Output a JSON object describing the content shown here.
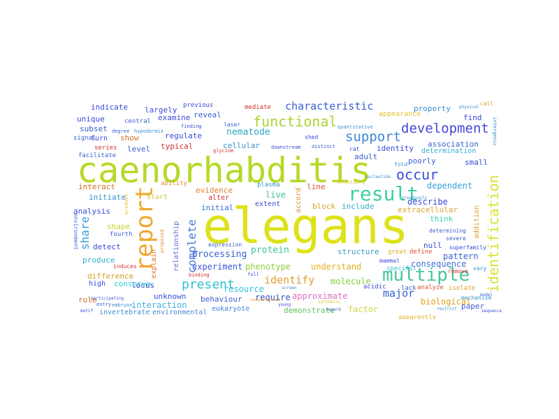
{
  "words": [
    {
      "text": "caenorhabditis",
      "color": "#b5d927"
    },
    {
      "text": "elegans",
      "color": "#dde21b"
    },
    {
      "text": "report",
      "color": "#f0a830"
    },
    {
      "text": "result",
      "color": "#3fcfa0"
    },
    {
      "text": "multiple",
      "color": "#46c79a"
    },
    {
      "text": "identification",
      "color": "#d7e232"
    },
    {
      "text": "development",
      "color": "#4a44d8"
    },
    {
      "text": "functional",
      "color": "#a8d534"
    },
    {
      "text": "characteristic",
      "color": "#3a5fcf"
    },
    {
      "text": "support",
      "color": "#3e86d8"
    },
    {
      "text": "occur",
      "color": "#3a4de0"
    },
    {
      "text": "present",
      "color": "#2fbfcf"
    },
    {
      "text": "complete",
      "color": "#4a7ad8"
    },
    {
      "text": "share",
      "color": "#3a9fd8"
    },
    {
      "text": "identify",
      "color": "#e0a030"
    },
    {
      "text": "major",
      "color": "#3060d0"
    },
    {
      "text": "nematode",
      "color": "#2fa6c0"
    },
    {
      "text": "protein",
      "color": "#3fc6a0"
    },
    {
      "text": "processing",
      "color": "#3a5fcf"
    },
    {
      "text": "experiment",
      "color": "#3a55d8"
    },
    {
      "text": "phenotype",
      "color": "#8fd03a"
    },
    {
      "text": "understand",
      "color": "#e0b020"
    },
    {
      "text": "molecule",
      "color": "#7fd03a"
    },
    {
      "text": "resource",
      "color": "#2fc2e0"
    },
    {
      "text": "require",
      "color": "#3050d0"
    },
    {
      "text": "approximate",
      "color": "#dc6fc0"
    },
    {
      "text": "demonstrate",
      "color": "#5fc060"
    },
    {
      "text": "factor",
      "color": "#d2d840"
    },
    {
      "text": "interaction",
      "color": "#3fb0e0"
    },
    {
      "text": "behaviour",
      "color": "#3a5fcf"
    },
    {
      "text": "eukaryote",
      "color": "#3a7fd8"
    },
    {
      "text": "biological",
      "color": "#e0a020"
    },
    {
      "text": "paper",
      "color": "#3a5fcf"
    },
    {
      "text": "invertebrate",
      "color": "#3a90d0"
    },
    {
      "text": "environmental",
      "color": "#4a8ad0"
    },
    {
      "text": "unknown",
      "color": "#3a55d8"
    },
    {
      "text": "locus",
      "color": "#2a40c0"
    },
    {
      "text": "high",
      "color": "#3050e0"
    },
    {
      "text": "conserve",
      "color": "#2fd0e0"
    },
    {
      "text": "role",
      "color": "#d07020"
    },
    {
      "text": "difference",
      "color": "#d0a020"
    },
    {
      "text": "produce",
      "color": "#2fb0d0"
    },
    {
      "text": "detect",
      "color": "#3a4ad8"
    },
    {
      "text": "shape",
      "color": "#c8d030"
    },
    {
      "text": "explain",
      "color": "#e07030"
    },
    {
      "text": "relationship",
      "color": "#5a70d0"
    },
    {
      "text": "analysis",
      "color": "#3a4ad8"
    },
    {
      "text": "initiate",
      "color": "#3a90d0"
    },
    {
      "text": "interact",
      "color": "#d07020"
    },
    {
      "text": "start",
      "color": "#d0c840"
    },
    {
      "text": "evidence",
      "color": "#e08030"
    },
    {
      "text": "alter",
      "color": "#d03030"
    },
    {
      "text": "initial",
      "color": "#3a70d8"
    },
    {
      "text": "extent",
      "color": "#3a4ad8"
    },
    {
      "text": "live",
      "color": "#3fc090"
    },
    {
      "text": "block",
      "color": "#e0a020"
    },
    {
      "text": "include",
      "color": "#2fb0c0"
    },
    {
      "text": "accord",
      "color": "#e09030"
    },
    {
      "text": "line",
      "color": "#e05030"
    },
    {
      "text": "describe",
      "color": "#3a4ad8"
    },
    {
      "text": "extracellular",
      "color": "#e0a030"
    },
    {
      "text": "dependent",
      "color": "#3a9fd8"
    },
    {
      "text": "think",
      "color": "#3fd0b0"
    },
    {
      "text": "addition",
      "color": "#e0a030"
    },
    {
      "text": "null",
      "color": "#3a4ad8"
    },
    {
      "text": "pattern",
      "color": "#3a5fcf"
    },
    {
      "text": "consequence",
      "color": "#4070d0"
    },
    {
      "text": "structure",
      "color": "#3a9fc0"
    },
    {
      "text": "investigate",
      "color": "#3a70d8"
    },
    {
      "text": "small",
      "color": "#3a4ad8"
    },
    {
      "text": "association",
      "color": "#3a5fcf"
    },
    {
      "text": "determination",
      "color": "#2fb0d0"
    },
    {
      "text": "identity",
      "color": "#3a4ad8"
    },
    {
      "text": "adult",
      "color": "#3a5fcf"
    },
    {
      "text": "find",
      "color": "#3a4ad8"
    },
    {
      "text": "property",
      "color": "#3a90d0"
    },
    {
      "text": "cellular",
      "color": "#3a90d0"
    },
    {
      "text": "reveal",
      "color": "#3a5fcf"
    },
    {
      "text": "poorly",
      "color": "#3a5fcf"
    },
    {
      "text": "examine",
      "color": "#3a4ad8"
    },
    {
      "text": "regulate",
      "color": "#3a4ad8"
    },
    {
      "text": "typical",
      "color": "#d03030"
    },
    {
      "text": "level",
      "color": "#3a5fcf"
    },
    {
      "text": "show",
      "color": "#d07020"
    },
    {
      "text": "largely",
      "color": "#3a4ad8"
    },
    {
      "text": "indicate",
      "color": "#3a4ad8"
    },
    {
      "text": "unique",
      "color": "#3a4ad8"
    },
    {
      "text": "subset",
      "color": "#3a5fcf"
    },
    {
      "text": "central",
      "color": "#3a5fcf"
    },
    {
      "text": "turn",
      "color": "#3a4ad8"
    },
    {
      "text": "series",
      "color": "#d03030"
    },
    {
      "text": "signal",
      "color": "#3a5fcf"
    },
    {
      "text": "facilitate",
      "color": "#3a5fcf"
    },
    {
      "text": "previous",
      "color": "#3a4ad8"
    },
    {
      "text": "mediate",
      "color": "#d03030"
    },
    {
      "text": "laser",
      "color": "#3a5fcf"
    },
    {
      "text": "shed",
      "color": "#3a4ad8"
    },
    {
      "text": "ability",
      "color": "#e09030"
    },
    {
      "text": "plasma",
      "color": "#3a90d0"
    },
    {
      "text": "fold",
      "color": "#3a90d0"
    },
    {
      "text": "rat",
      "color": "#3a4ad8"
    },
    {
      "text": "fourth",
      "color": "#3a5fcf"
    },
    {
      "text": "induces",
      "color": "#d03030"
    },
    {
      "text": "great",
      "color": "#e0b020"
    },
    {
      "text": "define",
      "color": "#e05030"
    },
    {
      "text": "mammal",
      "color": "#3a4ad8"
    },
    {
      "text": "specific",
      "color": "#2fc0d0"
    },
    {
      "text": "acidic",
      "color": "#3a4ad8"
    },
    {
      "text": "lack",
      "color": "#3a5fcf"
    },
    {
      "text": "analyze",
      "color": "#e05030"
    },
    {
      "text": "isolate",
      "color": "#e0a020"
    },
    {
      "text": "remove",
      "color": "#d03030"
    },
    {
      "text": "vary",
      "color": "#3a90d0"
    },
    {
      "text": "mechanism",
      "color": "#3a90d0"
    },
    {
      "text": "apparently",
      "color": "#e0b020"
    },
    {
      "text": "determining",
      "color": "#3a5fcf"
    },
    {
      "text": "severe",
      "color": "#3a5fcf"
    },
    {
      "text": "superfamily",
      "color": "#3a4ad8"
    },
    {
      "text": "expression",
      "color": "#3a5fcf"
    },
    {
      "text": "environment",
      "color": "#3a70d8"
    },
    {
      "text": "appearance",
      "color": "#e0c030"
    },
    {
      "text": "call",
      "color": "#e0a030"
    },
    {
      "text": "full",
      "color": "#3a4ad8"
    },
    {
      "text": "binding",
      "color": "#d03030"
    },
    {
      "text": "entry",
      "color": "#3a5fcf"
    },
    {
      "text": "embryos",
      "color": "#3a90d0"
    },
    {
      "text": "hypodermis",
      "color": "#3a90d0"
    },
    {
      "text": "degree",
      "color": "#3a5fcf"
    },
    {
      "text": "finding",
      "color": "#3a4ad8"
    },
    {
      "text": "proposed",
      "color": "#e09030"
    },
    {
      "text": "product",
      "color": "#e0c030"
    },
    {
      "text": "quantitative",
      "color": "#3a90d0"
    },
    {
      "text": "glycine",
      "color": "#d03030"
    },
    {
      "text": "intergenic",
      "color": "#3a90d0"
    },
    {
      "text": "downstream",
      "color": "#3a4ad8"
    },
    {
      "text": "distinct",
      "color": "#3a5fcf"
    },
    {
      "text": "previously",
      "color": "#3a90d0"
    },
    {
      "text": "nucleotide",
      "color": "#3a90d0"
    },
    {
      "text": "potentially",
      "color": "#e0c030"
    },
    {
      "text": "young",
      "color": "#3a4ad8"
    },
    {
      "text": "regard",
      "color": "#3a5fcf"
    },
    {
      "text": "restrict",
      "color": "#3a90d0"
    },
    {
      "text": "model",
      "color": "#3a5fcf"
    },
    {
      "text": "sequence",
      "color": "#3a4ad8"
    },
    {
      "text": "screen",
      "color": "#3a90d0"
    },
    {
      "text": "conservation",
      "color": "#e09030"
    },
    {
      "text": "synthesis",
      "color": "#e0c030"
    },
    {
      "text": "motif",
      "color": "#3a4ad8"
    },
    {
      "text": "participating",
      "color": "#3a5fcf"
    },
    {
      "text": "physical",
      "color": "#3a90d0"
    }
  ]
}
